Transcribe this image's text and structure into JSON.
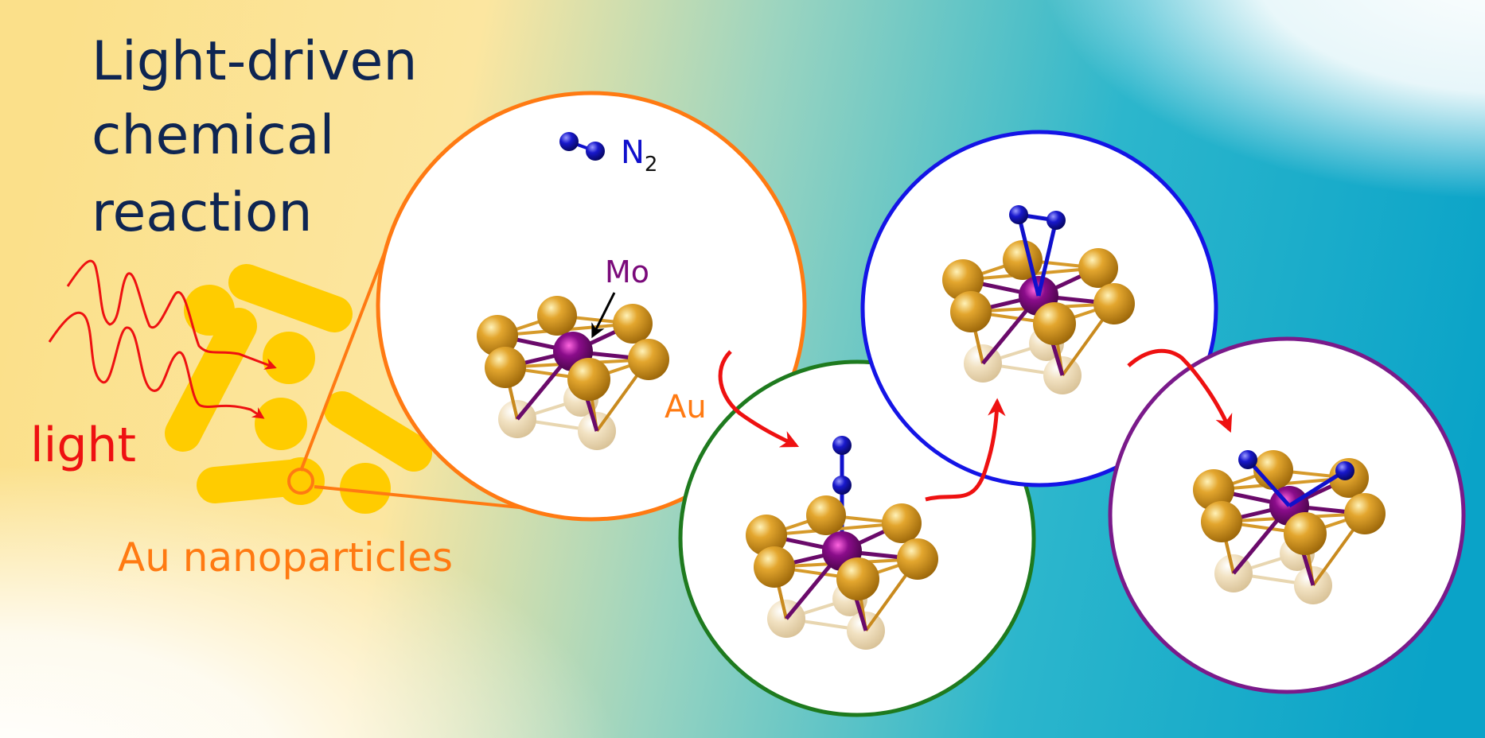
{
  "title": {
    "line1": "Light-driven",
    "line2": "chemical",
    "line3": "reaction"
  },
  "labels": {
    "light": "light",
    "nanoparticles": "Au nanoparticles",
    "mo": "Mo",
    "au": "Au",
    "n2_base": "N",
    "n2_sub": "2"
  },
  "colors": {
    "title": "#0e2552",
    "light": "#ee1111",
    "gold_rods": "#ffcc00",
    "orange": "#ff7a12",
    "mo": "#7a0a7a",
    "nitrogen": "#1010cc",
    "au_atom": "#d9961c",
    "circle_1": "#ff7a12",
    "circle_2": "#1e7a1e",
    "circle_3": "#1414e6",
    "circle_4": "#7a1a8a",
    "arrow": "#ee1111"
  },
  "panels": [
    {
      "id": "initial",
      "n2_state": "free molecule"
    },
    {
      "id": "end-on",
      "n2_state": "end-on bound"
    },
    {
      "id": "side-on",
      "n2_state": "side-on bound"
    },
    {
      "id": "dissociated",
      "n2_state": "dissociated"
    }
  ]
}
